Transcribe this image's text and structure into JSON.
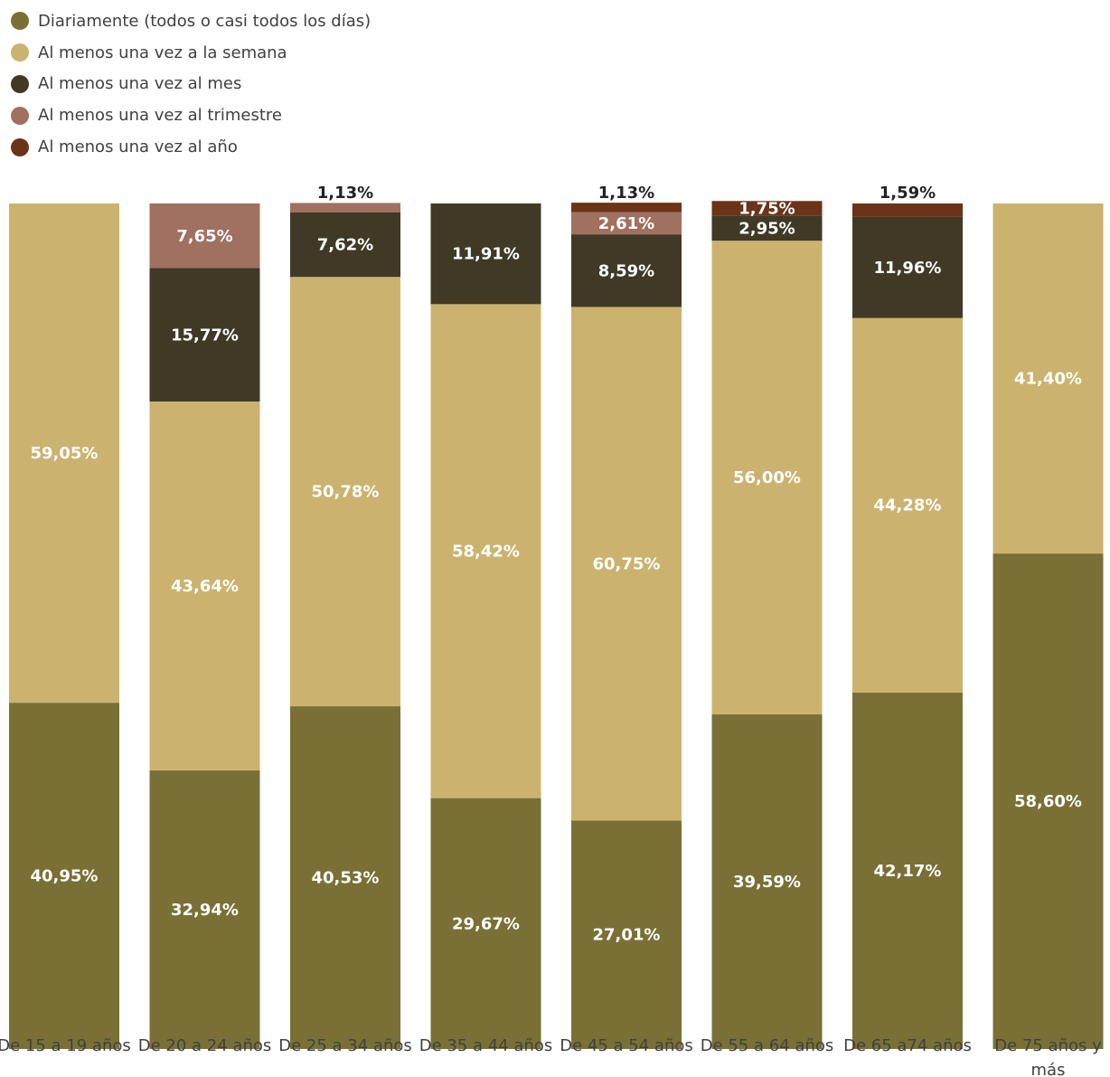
{
  "chart_data": {
    "type": "bar",
    "stacked": true,
    "categories": [
      "De 15 a 19 años",
      "De 20 a 24 años",
      "De 25 a 34 años",
      "De 35 a 44 años",
      "De 45 a 54 años",
      "De 55 a 64 años",
      "De 65 a74 años",
      "De 75 años y más"
    ],
    "series": [
      {
        "name": "Diariamente (todos o casi todos los días)",
        "color": "#7A7035",
        "values": [
          40.95,
          32.94,
          40.53,
          29.67,
          27.01,
          39.59,
          42.17,
          58.6
        ],
        "labels": [
          "40,95%",
          "32,94%",
          "40,53%",
          "29,67%",
          "27,01%",
          "39,59%",
          "42,17%",
          "58,60%"
        ]
      },
      {
        "name": "Al menos una vez a la semana",
        "color": "#CBB36F",
        "values": [
          59.05,
          43.64,
          50.78,
          58.42,
          60.75,
          56.0,
          44.28,
          41.4
        ],
        "labels": [
          "59,05%",
          "43,64%",
          "50,78%",
          "58,42%",
          "60,75%",
          "56,00%",
          "44,28%",
          "41,40%"
        ]
      },
      {
        "name": "Al menos una vez al mes",
        "color": "#403926",
        "values": [
          0,
          15.77,
          7.62,
          11.91,
          8.59,
          2.95,
          11.96,
          0
        ],
        "labels": [
          "",
          "15,77%",
          "7,62%",
          "11,91%",
          "8,59%",
          "2,95%",
          "11,96%",
          ""
        ]
      },
      {
        "name": "Al menos una vez al trimestre",
        "color": "#A07060",
        "values": [
          0,
          7.65,
          1.13,
          0,
          2.61,
          0,
          0,
          0
        ],
        "labels": [
          "",
          "7,65%",
          "1,13%",
          "",
          "2,61%",
          "",
          "",
          ""
        ]
      },
      {
        "name": "Al menos una vez al año",
        "color": "#6B3318",
        "values": [
          0,
          0,
          0,
          0,
          1.13,
          1.75,
          1.59,
          0
        ],
        "labels": [
          "",
          "",
          "",
          "",
          "1,13%",
          "1,75%",
          "1,59%",
          ""
        ]
      }
    ],
    "ylim": [
      0,
      100
    ],
    "legend_position": "top-left",
    "grid": false
  }
}
